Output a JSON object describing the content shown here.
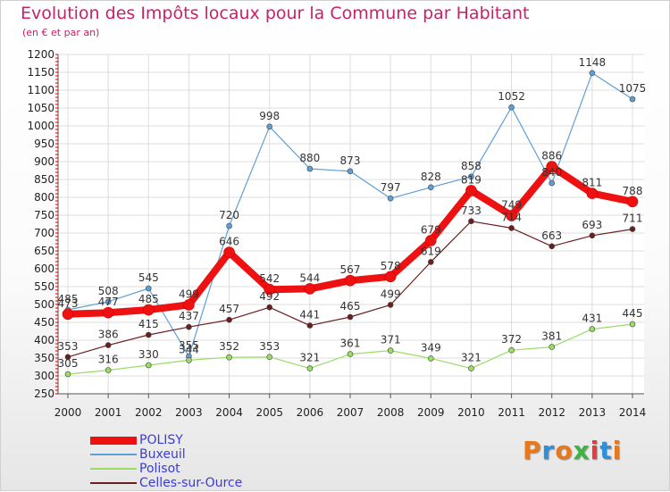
{
  "title": "Evolution des Impôts locaux pour la Commune par Habitant",
  "subtitle": "(en € et par an)",
  "logo": {
    "text": "Proxiti",
    "letter_colors": [
      "#e8781a",
      "#2f8fd8",
      "#e8781a",
      "#3cb53c",
      "#e83a3a",
      "#2f8fd8",
      "#e8781a"
    ]
  },
  "chart_data": {
    "type": "line",
    "x": [
      "2000",
      "2001",
      "2002",
      "2003",
      "2004",
      "2005",
      "2006",
      "2007",
      "2008",
      "2009",
      "2010",
      "2011",
      "2012",
      "2013",
      "2014"
    ],
    "ylim": [
      250,
      1200
    ],
    "yticks": [
      250,
      300,
      350,
      400,
      450,
      500,
      550,
      600,
      650,
      700,
      750,
      800,
      850,
      900,
      950,
      1000,
      1050,
      1100,
      1150,
      1200
    ],
    "grid": true,
    "legend_position": "bottom-left",
    "series": [
      {
        "name": "POLISY",
        "color": "#ee1111",
        "values": [
          473,
          477,
          485,
          499,
          646,
          542,
          544,
          567,
          578,
          679,
          819,
          749,
          886,
          811,
          788
        ]
      },
      {
        "name": "Buxeuil",
        "color": "#5f9fd4",
        "values": [
          485,
          508,
          545,
          355,
          720,
          998,
          880,
          873,
          797,
          828,
          858,
          1052,
          840,
          1148,
          1075
        ]
      },
      {
        "name": "Polisot",
        "color": "#99dd66",
        "values": [
          305,
          316,
          330,
          344,
          352,
          353,
          321,
          361,
          371,
          349,
          321,
          372,
          381,
          431,
          445
        ]
      },
      {
        "name": "Celles-sur-Ource",
        "color": "#6b1e1e",
        "values": [
          353,
          386,
          415,
          437,
          457,
          492,
          441,
          465,
          499,
          619,
          733,
          714,
          663,
          693,
          711
        ]
      }
    ]
  }
}
